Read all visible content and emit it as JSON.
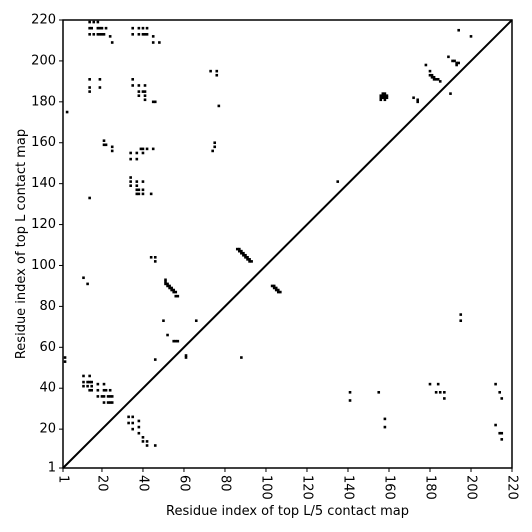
{
  "chart_data": {
    "type": "scatter",
    "title": "",
    "xlabel": "Residue index of top L/5 contact map",
    "ylabel": "Residue index of top L contact map",
    "xlim": [
      1,
      220
    ],
    "ylim": [
      1,
      220
    ],
    "x_ticks": [
      "1",
      "20",
      "40",
      "60",
      "80",
      "100",
      "120",
      "140",
      "160",
      "180",
      "200",
      "220"
    ],
    "x_tick_values": [
      1,
      20,
      40,
      60,
      80,
      100,
      120,
      140,
      160,
      180,
      200,
      220
    ],
    "y_ticks": [
      "1",
      "20",
      "40",
      "60",
      "80",
      "100",
      "120",
      "140",
      "160",
      "180",
      "200",
      "220"
    ],
    "y_tick_values": [
      1,
      20,
      40,
      60,
      80,
      100,
      120,
      140,
      160,
      180,
      200,
      220
    ],
    "grid": false,
    "diagonal": true,
    "marker_color": "#000000",
    "series": [
      {
        "points": [
          [
            14,
            219
          ],
          [
            16,
            219
          ],
          [
            18,
            219
          ],
          [
            14,
            216
          ],
          [
            15,
            216
          ],
          [
            18,
            216
          ],
          [
            19,
            216
          ],
          [
            20,
            216
          ],
          [
            22,
            216
          ],
          [
            14,
            213
          ],
          [
            16,
            213
          ],
          [
            18,
            213
          ],
          [
            19,
            213
          ],
          [
            20,
            213
          ],
          [
            21,
            213
          ],
          [
            24,
            212
          ],
          [
            25,
            209
          ],
          [
            35,
            216
          ],
          [
            38,
            216
          ],
          [
            40,
            216
          ],
          [
            42,
            216
          ],
          [
            35,
            213
          ],
          [
            38,
            213
          ],
          [
            40,
            213
          ],
          [
            41,
            213
          ],
          [
            42,
            213
          ],
          [
            45,
            212
          ],
          [
            45,
            209
          ],
          [
            48,
            209
          ],
          [
            73,
            195
          ],
          [
            76,
            195
          ],
          [
            76,
            193
          ],
          [
            14,
            191
          ],
          [
            19,
            191
          ],
          [
            14,
            187
          ],
          [
            19,
            187
          ],
          [
            14,
            185
          ],
          [
            35,
            191
          ],
          [
            35,
            188
          ],
          [
            38,
            188
          ],
          [
            41,
            188
          ],
          [
            38,
            185
          ],
          [
            40,
            185
          ],
          [
            41,
            185
          ],
          [
            38,
            183
          ],
          [
            41,
            183
          ],
          [
            41,
            181
          ],
          [
            45,
            180
          ],
          [
            46,
            180
          ],
          [
            77,
            178
          ],
          [
            3,
            175
          ],
          [
            21,
            161
          ],
          [
            21,
            159
          ],
          [
            22,
            159
          ],
          [
            25,
            158
          ],
          [
            25,
            156
          ],
          [
            39,
            157
          ],
          [
            40,
            157
          ],
          [
            42,
            157
          ],
          [
            45,
            157
          ],
          [
            34,
            155
          ],
          [
            37,
            155
          ],
          [
            40,
            155
          ],
          [
            34,
            152
          ],
          [
            37,
            152
          ],
          [
            74,
            156
          ],
          [
            75,
            158
          ],
          [
            75,
            160
          ],
          [
            34,
            143
          ],
          [
            34,
            141
          ],
          [
            34,
            139
          ],
          [
            37,
            141
          ],
          [
            37,
            139
          ],
          [
            40,
            141
          ],
          [
            37,
            137
          ],
          [
            38,
            137
          ],
          [
            40,
            137
          ],
          [
            37,
            135
          ],
          [
            38,
            135
          ],
          [
            40,
            135
          ],
          [
            44,
            135
          ],
          [
            14,
            133
          ],
          [
            44,
            104
          ],
          [
            46,
            104
          ],
          [
            46,
            102
          ],
          [
            11,
            94
          ],
          [
            13,
            91
          ],
          [
            51,
            93
          ],
          [
            51,
            92
          ],
          [
            51,
            91
          ],
          [
            52,
            91
          ],
          [
            52,
            90
          ],
          [
            53,
            90
          ],
          [
            53,
            89
          ],
          [
            54,
            89
          ],
          [
            54,
            88
          ],
          [
            55,
            88
          ],
          [
            55,
            87
          ],
          [
            56,
            87
          ],
          [
            56,
            85
          ],
          [
            57,
            85
          ],
          [
            50,
            73
          ],
          [
            66,
            73
          ],
          [
            52,
            66
          ],
          [
            55,
            63
          ],
          [
            56,
            63
          ],
          [
            57,
            63
          ],
          [
            61,
            56
          ],
          [
            61,
            55
          ],
          [
            46,
            54
          ],
          [
            88,
            55
          ],
          [
            86,
            108
          ],
          [
            87,
            108
          ],
          [
            87,
            107
          ],
          [
            88,
            107
          ],
          [
            88,
            106
          ],
          [
            89,
            106
          ],
          [
            89,
            105
          ],
          [
            90,
            105
          ],
          [
            90,
            104
          ],
          [
            91,
            104
          ],
          [
            91,
            103
          ],
          [
            92,
            103
          ],
          [
            92,
            102
          ],
          [
            93,
            102
          ],
          [
            103,
            90
          ],
          [
            104,
            90
          ],
          [
            104,
            89
          ],
          [
            105,
            89
          ],
          [
            105,
            88
          ],
          [
            106,
            88
          ],
          [
            106,
            87
          ],
          [
            107,
            87
          ],
          [
            135,
            141
          ],
          [
            2,
            55
          ],
          [
            2,
            53
          ],
          [
            11,
            46
          ],
          [
            14,
            46
          ],
          [
            11,
            43
          ],
          [
            13,
            43
          ],
          [
            14,
            43
          ],
          [
            15,
            43
          ],
          [
            11,
            41
          ],
          [
            13,
            41
          ],
          [
            15,
            41
          ],
          [
            14,
            39
          ],
          [
            15,
            39
          ],
          [
            18,
            42
          ],
          [
            21,
            42
          ],
          [
            18,
            39
          ],
          [
            21,
            39
          ],
          [
            22,
            39
          ],
          [
            24,
            39
          ],
          [
            18,
            36
          ],
          [
            20,
            36
          ],
          [
            21,
            36
          ],
          [
            23,
            36
          ],
          [
            24,
            36
          ],
          [
            25,
            36
          ],
          [
            21,
            33
          ],
          [
            23,
            33
          ],
          [
            24,
            33
          ],
          [
            25,
            33
          ],
          [
            33,
            26
          ],
          [
            35,
            26
          ],
          [
            38,
            24
          ],
          [
            33,
            23
          ],
          [
            35,
            23
          ],
          [
            38,
            21
          ],
          [
            35,
            20
          ],
          [
            38,
            18
          ],
          [
            40,
            16
          ],
          [
            40,
            14
          ],
          [
            42,
            14
          ],
          [
            42,
            12
          ],
          [
            46,
            12
          ],
          [
            141,
            38
          ],
          [
            141,
            34
          ],
          [
            155,
            38
          ],
          [
            158,
            25
          ],
          [
            158,
            21
          ],
          [
            157,
            184
          ],
          [
            158,
            184
          ],
          [
            156,
            183
          ],
          [
            157,
            183
          ],
          [
            158,
            183
          ],
          [
            159,
            183
          ],
          [
            156,
            182
          ],
          [
            157,
            182
          ],
          [
            158,
            182
          ],
          [
            159,
            182
          ],
          [
            156,
            181
          ],
          [
            158,
            181
          ],
          [
            172,
            182
          ],
          [
            174,
            181
          ],
          [
            174,
            180
          ],
          [
            178,
            198
          ],
          [
            180,
            195
          ],
          [
            180,
            193
          ],
          [
            181,
            193
          ],
          [
            181,
            192
          ],
          [
            182,
            192
          ],
          [
            182,
            191
          ],
          [
            183,
            191
          ],
          [
            184,
            191
          ],
          [
            185,
            190
          ],
          [
            189,
            202
          ],
          [
            191,
            200
          ],
          [
            192,
            200
          ],
          [
            193,
            199
          ],
          [
            193,
            198
          ],
          [
            194,
            199
          ],
          [
            194,
            215
          ],
          [
            200,
            212
          ],
          [
            190,
            184
          ],
          [
            195,
            76
          ],
          [
            195,
            73
          ],
          [
            180,
            42
          ],
          [
            184,
            42
          ],
          [
            183,
            38
          ],
          [
            185,
            38
          ],
          [
            187,
            38
          ],
          [
            187,
            35
          ],
          [
            212,
            42
          ],
          [
            212,
            22
          ],
          [
            214,
            38
          ],
          [
            215,
            35
          ],
          [
            214,
            18
          ],
          [
            215,
            18
          ],
          [
            215,
            15
          ]
        ]
      }
    ]
  }
}
